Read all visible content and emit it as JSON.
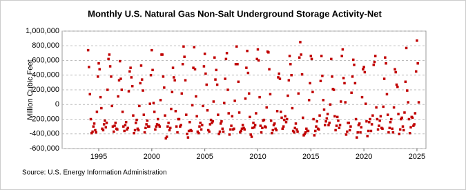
{
  "chart_data": {
    "type": "scatter",
    "title": "Monthly U.S. Natural Gas Non-Salt Underground Storage Activity-Net",
    "y_label": "Million Cubic Feet",
    "source": "Source: U.S. Energy Information Administration",
    "color": "#c00000",
    "grid": true,
    "xlim": [
      1991.55,
      2025.85
    ],
    "xticks": [
      1995,
      2000,
      2005,
      2010,
      2015,
      2020,
      2025
    ],
    "ylim": [
      -600000,
      1000000
    ],
    "yticks": [
      {
        "value": -600000,
        "label": "-600,000"
      },
      {
        "value": -400000,
        "label": "-400,000"
      },
      {
        "value": -200000,
        "label": "-200,000"
      },
      0,
      {
        "value": 200000,
        "label": "200,000"
      },
      {
        "value": 400000,
        "label": "400,000"
      },
      {
        "value": 600000,
        "label": "600,000"
      },
      {
        "value": 800000,
        "label": "800,000"
      },
      {
        "value": 1000000,
        "label": "1,000,000"
      }
    ],
    "x": [
      1994.0,
      1994.08,
      1994.17,
      1994.25,
      1994.33,
      1994.42,
      1994.5,
      1994.58,
      1994.67,
      1994.75,
      1994.83,
      1994.92,
      1995.0,
      1995.08,
      1995.17,
      1995.25,
      1995.33,
      1995.42,
      1995.5,
      1995.58,
      1995.67,
      1995.75,
      1995.83,
      1995.92,
      1996.0,
      1996.08,
      1996.17,
      1996.25,
      1996.33,
      1996.42,
      1996.5,
      1996.58,
      1996.67,
      1996.75,
      1996.83,
      1996.92,
      1997.0,
      1997.08,
      1997.17,
      1997.25,
      1997.33,
      1997.42,
      1997.5,
      1997.58,
      1997.67,
      1997.75,
      1997.83,
      1997.92,
      1998.0,
      1998.08,
      1998.17,
      1998.25,
      1998.33,
      1998.42,
      1998.5,
      1998.58,
      1998.67,
      1998.75,
      1998.83,
      1998.92,
      1999.0,
      1999.08,
      1999.17,
      1999.25,
      1999.33,
      1999.42,
      1999.5,
      1999.58,
      1999.67,
      1999.75,
      1999.83,
      1999.92,
      2000.0,
      2000.08,
      2000.17,
      2000.25,
      2000.33,
      2000.42,
      2000.5,
      2000.58,
      2000.67,
      2000.75,
      2000.83,
      2000.92,
      2001.0,
      2001.08,
      2001.17,
      2001.25,
      2001.33,
      2001.42,
      2001.5,
      2001.58,
      2001.67,
      2001.75,
      2001.83,
      2001.92,
      2002.0,
      2002.08,
      2002.17,
      2002.25,
      2002.33,
      2002.42,
      2002.5,
      2002.58,
      2002.67,
      2002.75,
      2002.83,
      2002.92,
      2003.0,
      2003.08,
      2003.17,
      2003.25,
      2003.33,
      2003.42,
      2003.5,
      2003.58,
      2003.67,
      2003.75,
      2003.83,
      2003.92,
      2004.0,
      2004.08,
      2004.17,
      2004.25,
      2004.33,
      2004.42,
      2004.5,
      2004.58,
      2004.67,
      2004.75,
      2004.83,
      2004.92,
      2005.0,
      2005.08,
      2005.17,
      2005.25,
      2005.33,
      2005.42,
      2005.5,
      2005.58,
      2005.67,
      2005.75,
      2005.83,
      2005.92,
      2006.0,
      2006.08,
      2006.17,
      2006.25,
      2006.33,
      2006.42,
      2006.5,
      2006.58,
      2006.67,
      2006.75,
      2006.83,
      2006.92,
      2007.0,
      2007.08,
      2007.17,
      2007.25,
      2007.33,
      2007.42,
      2007.5,
      2007.58,
      2007.67,
      2007.75,
      2007.83,
      2007.92,
      2008.0,
      2008.08,
      2008.17,
      2008.25,
      2008.33,
      2008.42,
      2008.5,
      2008.58,
      2008.67,
      2008.75,
      2008.83,
      2008.92,
      2009.0,
      2009.08,
      2009.17,
      2009.25,
      2009.33,
      2009.42,
      2009.5,
      2009.58,
      2009.67,
      2009.75,
      2009.83,
      2009.92,
      2010.0,
      2010.08,
      2010.17,
      2010.25,
      2010.33,
      2010.42,
      2010.5,
      2010.58,
      2010.67,
      2010.75,
      2010.83,
      2010.92,
      2011.0,
      2011.08,
      2011.17,
      2011.25,
      2011.33,
      2011.42,
      2011.5,
      2011.58,
      2011.67,
      2011.75,
      2011.83,
      2011.92,
      2012.0,
      2012.08,
      2012.17,
      2012.25,
      2012.33,
      2012.42,
      2012.5,
      2012.58,
      2012.67,
      2012.75,
      2012.83,
      2012.92,
      2013.0,
      2013.08,
      2013.17,
      2013.25,
      2013.33,
      2013.42,
      2013.5,
      2013.58,
      2013.67,
      2013.75,
      2013.83,
      2013.92,
      2014.0,
      2014.08,
      2014.17,
      2014.25,
      2014.33,
      2014.42,
      2014.5,
      2014.58,
      2014.67,
      2014.75,
      2014.83,
      2014.92,
      2015.0,
      2015.08,
      2015.17,
      2015.25,
      2015.33,
      2015.42,
      2015.5,
      2015.58,
      2015.67,
      2015.75,
      2015.83,
      2015.92,
      2016.0,
      2016.08,
      2016.17,
      2016.25,
      2016.33,
      2016.42,
      2016.5,
      2016.58,
      2016.67,
      2016.75,
      2016.83,
      2016.92,
      2017.0,
      2017.08,
      2017.17,
      2017.25,
      2017.33,
      2017.42,
      2017.5,
      2017.58,
      2017.67,
      2017.75,
      2017.83,
      2017.92,
      2018.0,
      2018.08,
      2018.17,
      2018.25,
      2018.33,
      2018.42,
      2018.5,
      2018.58,
      2018.67,
      2018.75,
      2018.83,
      2018.92,
      2019.0,
      2019.08,
      2019.17,
      2019.25,
      2019.33,
      2019.42,
      2019.5,
      2019.58,
      2019.67,
      2019.75,
      2019.83,
      2019.92,
      2020.0,
      2020.08,
      2020.17,
      2020.25,
      2020.33,
      2020.42,
      2020.5,
      2020.58,
      2020.67,
      2020.75,
      2020.83,
      2020.92,
      2021.0,
      2021.08,
      2021.17,
      2021.25,
      2021.33,
      2021.42,
      2021.5,
      2021.58,
      2021.67,
      2021.75,
      2021.83,
      2021.92,
      2022.0,
      2022.08,
      2022.17,
      2022.25,
      2022.33,
      2022.42,
      2022.5,
      2022.58,
      2022.67,
      2022.75,
      2022.83,
      2022.92,
      2023.0,
      2023.08,
      2023.17,
      2023.25,
      2023.33,
      2023.42,
      2023.5,
      2023.58,
      2023.67,
      2023.75,
      2023.83,
      2023.92,
      2024.0,
      2024.08,
      2024.17,
      2024.25,
      2024.33,
      2024.42,
      2024.5,
      2024.58,
      2024.67,
      2024.75,
      2024.83,
      2024.92,
      2025.0,
      2025.08,
      2025.17
    ],
    "values": [
      740000,
      510000,
      140000,
      -200000,
      -390000,
      -370000,
      -300000,
      -260000,
      -350000,
      -380000,
      -100000,
      380000,
      560000,
      480000,
      100000,
      -50000,
      -330000,
      -350000,
      -270000,
      -220000,
      -310000,
      -250000,
      200000,
      620000,
      680000,
      520000,
      380000,
      -20000,
      -300000,
      -370000,
      -290000,
      -250000,
      -330000,
      -340000,
      110000,
      330000,
      590000,
      350000,
      200000,
      -100000,
      -300000,
      -360000,
      -280000,
      -240000,
      -340000,
      -320000,
      180000,
      450000,
      500000,
      370000,
      250000,
      -150000,
      -390000,
      -350000,
      -250000,
      -210000,
      -330000,
      -350000,
      -20000,
      290000,
      530000,
      340000,
      190000,
      -140000,
      -380000,
      -320000,
      -270000,
      -220000,
      -300000,
      -300000,
      10000,
      400000,
      740000,
      470000,
      20000,
      -100000,
      -340000,
      -300000,
      -270000,
      -200000,
      -280000,
      -300000,
      60000,
      680000,
      680000,
      380000,
      230000,
      -150000,
      -460000,
      -440000,
      -300000,
      -250000,
      -350000,
      -320000,
      -60000,
      170000,
      500000,
      370000,
      330000,
      -90000,
      -300000,
      -380000,
      -200000,
      -200000,
      -300000,
      -280000,
      150000,
      550000,
      790000,
      650000,
      330000,
      -140000,
      -400000,
      -450000,
      -360000,
      -240000,
      -350000,
      -360000,
      -10000,
      500000,
      780000,
      480000,
      110000,
      -160000,
      -370000,
      -390000,
      -300000,
      -250000,
      -340000,
      -280000,
      -20000,
      520000,
      690000,
      420000,
      270000,
      -80000,
      -350000,
      -370000,
      -270000,
      -210000,
      -250000,
      -230000,
      40000,
      640000,
      340000,
      470000,
      270000,
      -140000,
      -400000,
      -370000,
      -260000,
      -230000,
      -330000,
      -370000,
      20000,
      350000,
      620000,
      700000,
      200000,
      -120000,
      -410000,
      -340000,
      -290000,
      -160000,
      -340000,
      -330000,
      50000,
      550000,
      790000,
      550000,
      310000,
      -110000,
      -380000,
      -360000,
      -330000,
      -280000,
      -320000,
      -340000,
      80000,
      500000,
      730000,
      430000,
      150000,
      -170000,
      -410000,
      -440000,
      -320000,
      -250000,
      -310000,
      -280000,
      -120000,
      620000,
      750000,
      600000,
      100000,
      -290000,
      -380000,
      -320000,
      -220000,
      -210000,
      -300000,
      -310000,
      -40000,
      720000,
      710000,
      480000,
      140000,
      -220000,
      -390000,
      -350000,
      -280000,
      -260000,
      -330000,
      -350000,
      -90000,
      370000,
      420000,
      350000,
      -100000,
      -180000,
      -330000,
      -300000,
      -210000,
      -160000,
      -240000,
      -200000,
      120000,
      330000,
      660000,
      550000,
      400000,
      -50000,
      -360000,
      -380000,
      -320000,
      -260000,
      -340000,
      -370000,
      150000,
      640000,
      850000,
      680000,
      410000,
      -180000,
      -420000,
      -400000,
      -380000,
      -330000,
      -360000,
      -360000,
      60000,
      290000,
      660000,
      620000,
      170000,
      -200000,
      -420000,
      -360000,
      -300000,
      -230000,
      -330000,
      -340000,
      -150000,
      320000,
      660000,
      390000,
      60000,
      -70000,
      -280000,
      -230000,
      -190000,
      -130000,
      -280000,
      -250000,
      0,
      620000,
      380000,
      210000,
      200000,
      -160000,
      -350000,
      -290000,
      -170000,
      -220000,
      -320000,
      -280000,
      40000,
      660000,
      750000,
      360000,
      290000,
      30000,
      -410000,
      -370000,
      -250000,
      -250000,
      -350000,
      -300000,
      160000,
      380000,
      610000,
      540000,
      290000,
      -200000,
      -450000,
      -380000,
      -280000,
      -260000,
      -380000,
      -310000,
      100000,
      480000,
      510000,
      440000,
      10000,
      -230000,
      -430000,
      -360000,
      -240000,
      -200000,
      -360000,
      -270000,
      -150000,
      540000,
      580000,
      660000,
      -40000,
      -200000,
      -340000,
      -290000,
      -220000,
      -160000,
      -320000,
      -330000,
      -30000,
      350000,
      640000,
      560000,
      140000,
      -140000,
      -380000,
      -320000,
      -240000,
      -200000,
      -330000,
      -380000,
      -40000,
      480000,
      440000,
      270000,
      240000,
      -130000,
      -400000,
      -340000,
      -200000,
      -180000,
      -300000,
      -350000,
      -110000,
      310000,
      770000,
      190000,
      30000,
      -200000,
      -390000,
      -310000,
      -170000,
      -180000,
      -290000,
      -270000,
      -120000,
      450000,
      870000,
      560000,
      30000
    ]
  }
}
